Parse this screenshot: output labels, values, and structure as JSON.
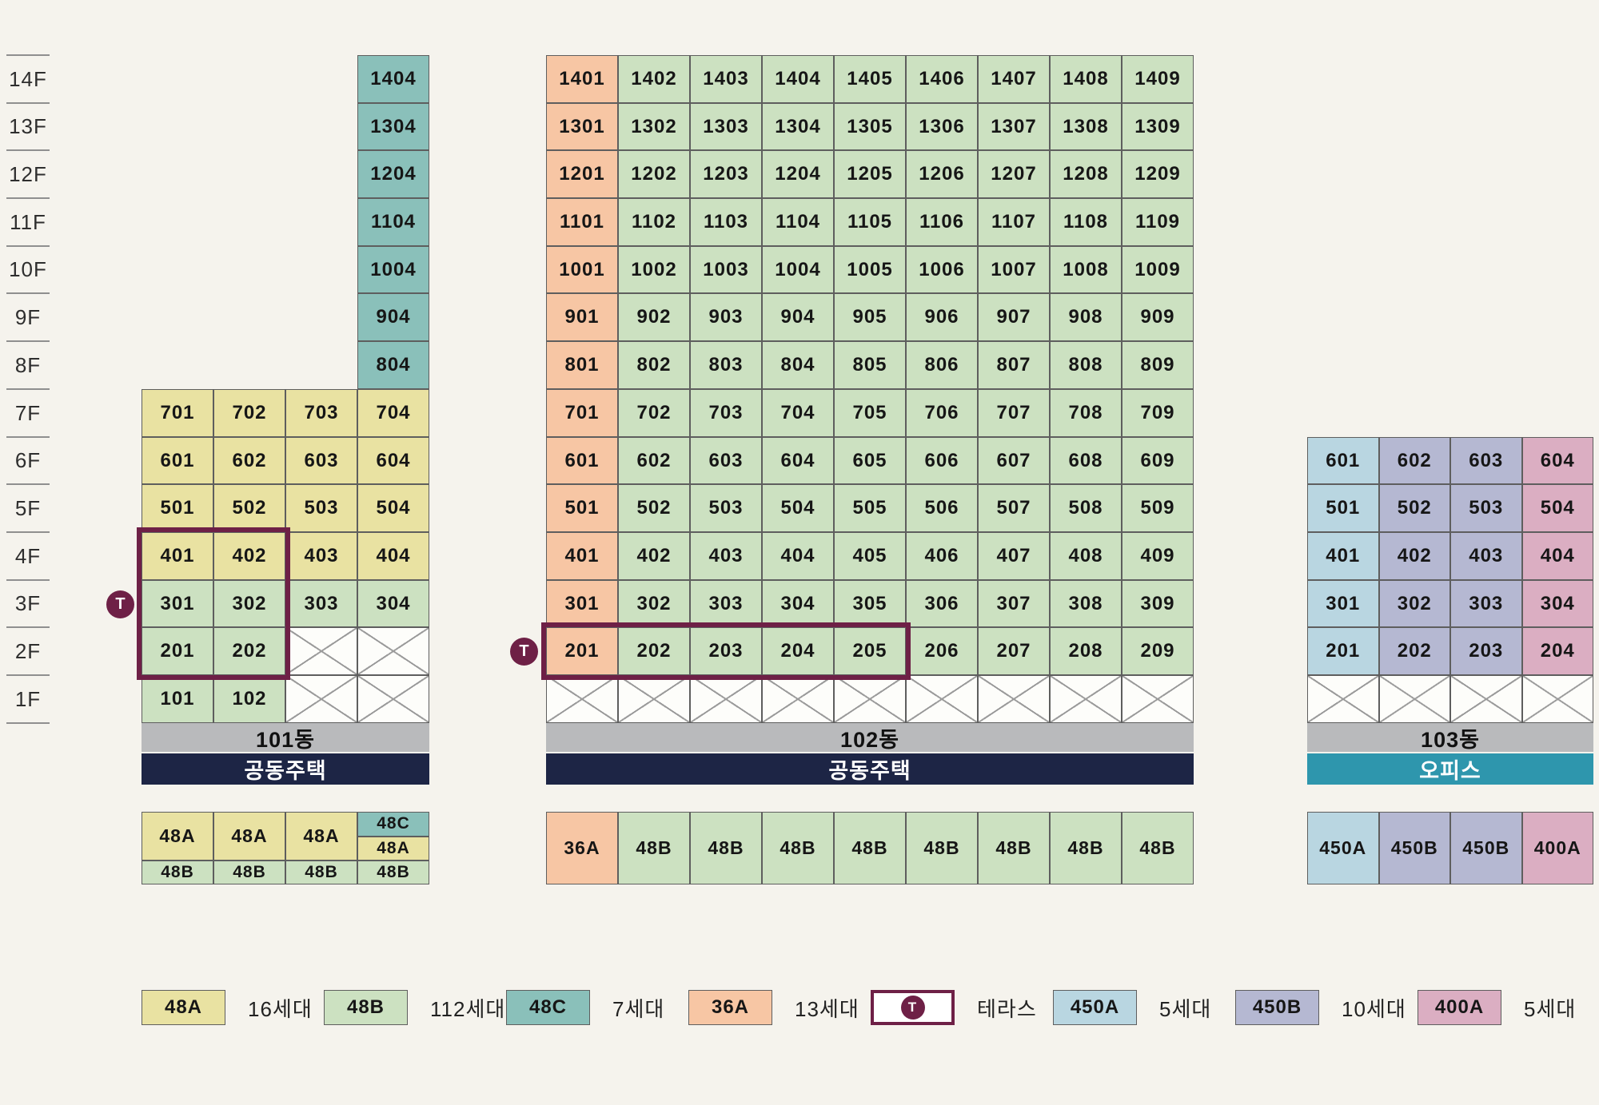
{
  "colors": {
    "bg": "#f5f3ed",
    "yellow": "#e9e2a2",
    "green": "#cce1c1",
    "teal": "#8ac0ba",
    "orange": "#f7c6a4",
    "blue": "#b9d6e1",
    "lavender": "#b5b8d2",
    "pink": "#dbaec2",
    "gray_bar": "#b9babc",
    "navy_bar": "#1d2545",
    "teal_bar": "#2e96ad",
    "maroon": "#6e2046",
    "cell_border": "#5e5e5e",
    "x_line": "#9b9b9b"
  },
  "floor_rail": {
    "labels": [
      "14F",
      "13F",
      "12F",
      "11F",
      "10F",
      "9F",
      "8F",
      "7F",
      "6F",
      "5F",
      "4F",
      "3F",
      "2F",
      "1F"
    ]
  },
  "buildings": [
    {
      "id": "101",
      "name_label": "101동",
      "usage_label": "공동주택",
      "usage_style": "navy",
      "rows": [
        {
          "floor": "14F",
          "cells": [
            null,
            null,
            null,
            [
              "1404",
              "teal"
            ]
          ]
        },
        {
          "floor": "13F",
          "cells": [
            null,
            null,
            null,
            [
              "1304",
              "teal"
            ]
          ]
        },
        {
          "floor": "12F",
          "cells": [
            null,
            null,
            null,
            [
              "1204",
              "teal"
            ]
          ]
        },
        {
          "floor": "11F",
          "cells": [
            null,
            null,
            null,
            [
              "1104",
              "teal"
            ]
          ]
        },
        {
          "floor": "10F",
          "cells": [
            null,
            null,
            null,
            [
              "1004",
              "teal"
            ]
          ]
        },
        {
          "floor": "9F",
          "cells": [
            null,
            null,
            null,
            [
              "904",
              "teal"
            ]
          ]
        },
        {
          "floor": "8F",
          "cells": [
            null,
            null,
            null,
            [
              "804",
              "teal"
            ]
          ]
        },
        {
          "floor": "7F",
          "cells": [
            [
              "701",
              "yellow"
            ],
            [
              "702",
              "yellow"
            ],
            [
              "703",
              "yellow"
            ],
            [
              "704",
              "yellow"
            ]
          ]
        },
        {
          "floor": "6F",
          "cells": [
            [
              "601",
              "yellow"
            ],
            [
              "602",
              "yellow"
            ],
            [
              "603",
              "yellow"
            ],
            [
              "604",
              "yellow"
            ]
          ]
        },
        {
          "floor": "5F",
          "cells": [
            [
              "501",
              "yellow"
            ],
            [
              "502",
              "yellow"
            ],
            [
              "503",
              "yellow"
            ],
            [
              "504",
              "yellow"
            ]
          ]
        },
        {
          "floor": "4F",
          "cells": [
            [
              "401",
              "yellow"
            ],
            [
              "402",
              "yellow"
            ],
            [
              "403",
              "yellow"
            ],
            [
              "404",
              "yellow"
            ]
          ]
        },
        {
          "floor": "3F",
          "cells": [
            [
              "301",
              "green"
            ],
            [
              "302",
              "green"
            ],
            [
              "303",
              "green"
            ],
            [
              "304",
              "green"
            ]
          ]
        },
        {
          "floor": "2F",
          "cells": [
            [
              "201",
              "green"
            ],
            [
              "202",
              "green"
            ],
            "X",
            "X"
          ]
        },
        {
          "floor": "1F",
          "cells": [
            [
              "101",
              "green"
            ],
            [
              "102",
              "green"
            ],
            "X",
            "X"
          ]
        }
      ],
      "type_table": {
        "tall_cells": [
          [
            "48A",
            "yellow"
          ],
          [
            "48A",
            "yellow"
          ],
          [
            "48A",
            "yellow"
          ]
        ],
        "split_top": [
          "48C",
          "teal"
        ],
        "split_bottom": [
          "48A",
          "yellow"
        ],
        "bottom_cells": [
          [
            "48B",
            "green"
          ],
          [
            "48B",
            "green"
          ],
          [
            "48B",
            "green"
          ],
          [
            "48B",
            "green"
          ]
        ]
      }
    },
    {
      "id": "102",
      "name_label": "102동",
      "usage_label": "공동주택",
      "usage_style": "navy",
      "rows": [
        {
          "floor": "14F",
          "cells": [
            [
              "1401",
              "orange"
            ],
            [
              "1402",
              "green"
            ],
            [
              "1403",
              "green"
            ],
            [
              "1404",
              "green"
            ],
            [
              "1405",
              "green"
            ],
            [
              "1406",
              "green"
            ],
            [
              "1407",
              "green"
            ],
            [
              "1408",
              "green"
            ],
            [
              "1409",
              "green"
            ]
          ]
        },
        {
          "floor": "13F",
          "cells": [
            [
              "1301",
              "orange"
            ],
            [
              "1302",
              "green"
            ],
            [
              "1303",
              "green"
            ],
            [
              "1304",
              "green"
            ],
            [
              "1305",
              "green"
            ],
            [
              "1306",
              "green"
            ],
            [
              "1307",
              "green"
            ],
            [
              "1308",
              "green"
            ],
            [
              "1309",
              "green"
            ]
          ]
        },
        {
          "floor": "12F",
          "cells": [
            [
              "1201",
              "orange"
            ],
            [
              "1202",
              "green"
            ],
            [
              "1203",
              "green"
            ],
            [
              "1204",
              "green"
            ],
            [
              "1205",
              "green"
            ],
            [
              "1206",
              "green"
            ],
            [
              "1207",
              "green"
            ],
            [
              "1208",
              "green"
            ],
            [
              "1209",
              "green"
            ]
          ]
        },
        {
          "floor": "11F",
          "cells": [
            [
              "1101",
              "orange"
            ],
            [
              "1102",
              "green"
            ],
            [
              "1103",
              "green"
            ],
            [
              "1104",
              "green"
            ],
            [
              "1105",
              "green"
            ],
            [
              "1106",
              "green"
            ],
            [
              "1107",
              "green"
            ],
            [
              "1108",
              "green"
            ],
            [
              "1109",
              "green"
            ]
          ]
        },
        {
          "floor": "10F",
          "cells": [
            [
              "1001",
              "orange"
            ],
            [
              "1002",
              "green"
            ],
            [
              "1003",
              "green"
            ],
            [
              "1004",
              "green"
            ],
            [
              "1005",
              "green"
            ],
            [
              "1006",
              "green"
            ],
            [
              "1007",
              "green"
            ],
            [
              "1008",
              "green"
            ],
            [
              "1009",
              "green"
            ]
          ]
        },
        {
          "floor": "9F",
          "cells": [
            [
              "901",
              "orange"
            ],
            [
              "902",
              "green"
            ],
            [
              "903",
              "green"
            ],
            [
              "904",
              "green"
            ],
            [
              "905",
              "green"
            ],
            [
              "906",
              "green"
            ],
            [
              "907",
              "green"
            ],
            [
              "908",
              "green"
            ],
            [
              "909",
              "green"
            ]
          ]
        },
        {
          "floor": "8F",
          "cells": [
            [
              "801",
              "orange"
            ],
            [
              "802",
              "green"
            ],
            [
              "803",
              "green"
            ],
            [
              "804",
              "green"
            ],
            [
              "805",
              "green"
            ],
            [
              "806",
              "green"
            ],
            [
              "807",
              "green"
            ],
            [
              "808",
              "green"
            ],
            [
              "809",
              "green"
            ]
          ]
        },
        {
          "floor": "7F",
          "cells": [
            [
              "701",
              "orange"
            ],
            [
              "702",
              "green"
            ],
            [
              "703",
              "green"
            ],
            [
              "704",
              "green"
            ],
            [
              "705",
              "green"
            ],
            [
              "706",
              "green"
            ],
            [
              "707",
              "green"
            ],
            [
              "708",
              "green"
            ],
            [
              "709",
              "green"
            ]
          ]
        },
        {
          "floor": "6F",
          "cells": [
            [
              "601",
              "orange"
            ],
            [
              "602",
              "green"
            ],
            [
              "603",
              "green"
            ],
            [
              "604",
              "green"
            ],
            [
              "605",
              "green"
            ],
            [
              "606",
              "green"
            ],
            [
              "607",
              "green"
            ],
            [
              "608",
              "green"
            ],
            [
              "609",
              "green"
            ]
          ]
        },
        {
          "floor": "5F",
          "cells": [
            [
              "501",
              "orange"
            ],
            [
              "502",
              "green"
            ],
            [
              "503",
              "green"
            ],
            [
              "504",
              "green"
            ],
            [
              "505",
              "green"
            ],
            [
              "506",
              "green"
            ],
            [
              "507",
              "green"
            ],
            [
              "508",
              "green"
            ],
            [
              "509",
              "green"
            ]
          ]
        },
        {
          "floor": "4F",
          "cells": [
            [
              "401",
              "orange"
            ],
            [
              "402",
              "green"
            ],
            [
              "403",
              "green"
            ],
            [
              "404",
              "green"
            ],
            [
              "405",
              "green"
            ],
            [
              "406",
              "green"
            ],
            [
              "407",
              "green"
            ],
            [
              "408",
              "green"
            ],
            [
              "409",
              "green"
            ]
          ]
        },
        {
          "floor": "3F",
          "cells": [
            [
              "301",
              "orange"
            ],
            [
              "302",
              "green"
            ],
            [
              "303",
              "green"
            ],
            [
              "304",
              "green"
            ],
            [
              "305",
              "green"
            ],
            [
              "306",
              "green"
            ],
            [
              "307",
              "green"
            ],
            [
              "308",
              "green"
            ],
            [
              "309",
              "green"
            ]
          ]
        },
        {
          "floor": "2F",
          "cells": [
            [
              "201",
              "orange"
            ],
            [
              "202",
              "green"
            ],
            [
              "203",
              "green"
            ],
            [
              "204",
              "green"
            ],
            [
              "205",
              "green"
            ],
            [
              "206",
              "green"
            ],
            [
              "207",
              "green"
            ],
            [
              "208",
              "green"
            ],
            [
              "209",
              "green"
            ]
          ]
        },
        {
          "floor": "1F",
          "cells": [
            "X",
            "X",
            "X",
            "X",
            "X",
            "X",
            "X",
            "X",
            "X"
          ]
        }
      ],
      "type_table": {
        "single_cells": [
          [
            "36A",
            "orange"
          ],
          [
            "48B",
            "green"
          ],
          [
            "48B",
            "green"
          ],
          [
            "48B",
            "green"
          ],
          [
            "48B",
            "green"
          ],
          [
            "48B",
            "green"
          ],
          [
            "48B",
            "green"
          ],
          [
            "48B",
            "green"
          ],
          [
            "48B",
            "green"
          ]
        ]
      }
    },
    {
      "id": "103",
      "name_label": "103동",
      "usage_label": "오피스",
      "usage_style": "office",
      "rows": [
        {
          "floor": "6F",
          "cells": [
            [
              "601",
              "blue"
            ],
            [
              "602",
              "lavender"
            ],
            [
              "603",
              "lavender"
            ],
            [
              "604",
              "pink"
            ]
          ]
        },
        {
          "floor": "5F",
          "cells": [
            [
              "501",
              "blue"
            ],
            [
              "502",
              "lavender"
            ],
            [
              "503",
              "lavender"
            ],
            [
              "504",
              "pink"
            ]
          ]
        },
        {
          "floor": "4F",
          "cells": [
            [
              "401",
              "blue"
            ],
            [
              "402",
              "lavender"
            ],
            [
              "403",
              "lavender"
            ],
            [
              "404",
              "pink"
            ]
          ]
        },
        {
          "floor": "3F",
          "cells": [
            [
              "301",
              "blue"
            ],
            [
              "302",
              "lavender"
            ],
            [
              "303",
              "lavender"
            ],
            [
              "304",
              "pink"
            ]
          ]
        },
        {
          "floor": "2F",
          "cells": [
            [
              "201",
              "blue"
            ],
            [
              "202",
              "lavender"
            ],
            [
              "203",
              "lavender"
            ],
            [
              "204",
              "pink"
            ]
          ]
        },
        {
          "floor": "1F",
          "cells": [
            "X",
            "X",
            "X",
            "X"
          ]
        }
      ],
      "type_table": {
        "single_cells": [
          [
            "450A",
            "blue"
          ],
          [
            "450B",
            "lavender"
          ],
          [
            "450B",
            "lavender"
          ],
          [
            "400A",
            "pink"
          ]
        ]
      }
    }
  ],
  "terraces": [
    {
      "building": "101동",
      "marker": "T",
      "units": [
        "401",
        "402",
        "301",
        "302",
        "201",
        "202"
      ]
    },
    {
      "building": "102동",
      "marker": "T",
      "units": [
        "201",
        "202",
        "203",
        "204",
        "205"
      ]
    }
  ],
  "legend": {
    "items": [
      {
        "swatch": "48A",
        "color": "yellow",
        "label": "16세대"
      },
      {
        "swatch": "48B",
        "color": "green",
        "label": "112세대"
      },
      {
        "swatch": "48C",
        "color": "teal",
        "label": "7세대"
      },
      {
        "swatch": "36A",
        "color": "orange",
        "label": "13세대"
      },
      {
        "swatch": "T",
        "color": "terrace",
        "label": "테라스"
      },
      {
        "swatch": "450A",
        "color": "blue",
        "label": "5세대"
      },
      {
        "swatch": "450B",
        "color": "lavender",
        "label": "10세대"
      },
      {
        "swatch": "400A",
        "color": "pink",
        "label": "5세대"
      }
    ]
  }
}
